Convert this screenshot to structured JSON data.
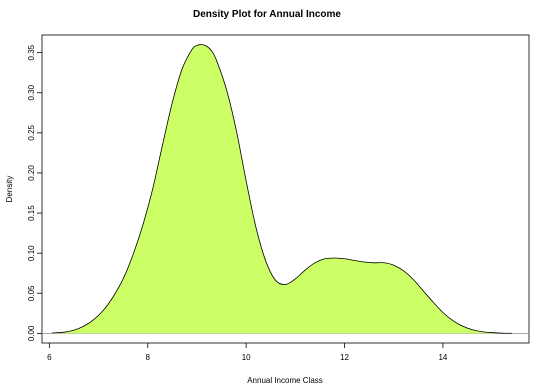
{
  "chart_data": {
    "type": "area",
    "title": "Density Plot for Annual Income",
    "xlabel": "Annual Income Class",
    "ylabel": "Density",
    "xlim": [
      5.85,
      15.75
    ],
    "ylim": [
      -0.012,
      0.372
    ],
    "x_ticks": [
      6,
      8,
      10,
      12,
      14
    ],
    "y_ticks": [
      0.0,
      0.05,
      0.1,
      0.15,
      0.2,
      0.25,
      0.3,
      0.35
    ],
    "x_tick_labels": [
      "6",
      "8",
      "10",
      "12",
      "14"
    ],
    "y_tick_labels": [
      "0.00",
      "0.05",
      "0.10",
      "0.15",
      "0.20",
      "0.25",
      "0.30",
      "0.35"
    ],
    "grid": false,
    "baseline": 0,
    "fill_color": "#ccff66",
    "line_color": "#000000",
    "series": [
      {
        "x": [
          6.05,
          6.3,
          6.5,
          6.7,
          6.9,
          7.1,
          7.3,
          7.5,
          7.7,
          7.9,
          8.1,
          8.3,
          8.5,
          8.7,
          8.9,
          9.0,
          9.1,
          9.2,
          9.3,
          9.4,
          9.6,
          9.8,
          10.0,
          10.2,
          10.4,
          10.6,
          10.8,
          11.0,
          11.2,
          11.4,
          11.6,
          11.8,
          12.0,
          12.2,
          12.4,
          12.6,
          12.8,
          13.0,
          13.2,
          13.4,
          13.6,
          13.8,
          14.0,
          14.2,
          14.4,
          14.6,
          14.8,
          15.0,
          15.2,
          15.4
        ],
        "y": [
          0.0005,
          0.0015,
          0.004,
          0.009,
          0.017,
          0.029,
          0.046,
          0.068,
          0.098,
          0.135,
          0.18,
          0.235,
          0.288,
          0.33,
          0.354,
          0.359,
          0.36,
          0.358,
          0.352,
          0.34,
          0.304,
          0.253,
          0.19,
          0.132,
          0.09,
          0.066,
          0.061,
          0.068,
          0.079,
          0.088,
          0.093,
          0.094,
          0.093,
          0.091,
          0.089,
          0.088,
          0.088,
          0.085,
          0.078,
          0.067,
          0.053,
          0.039,
          0.026,
          0.016,
          0.009,
          0.0045,
          0.002,
          0.001,
          0.0003,
          0.0001
        ]
      }
    ]
  }
}
